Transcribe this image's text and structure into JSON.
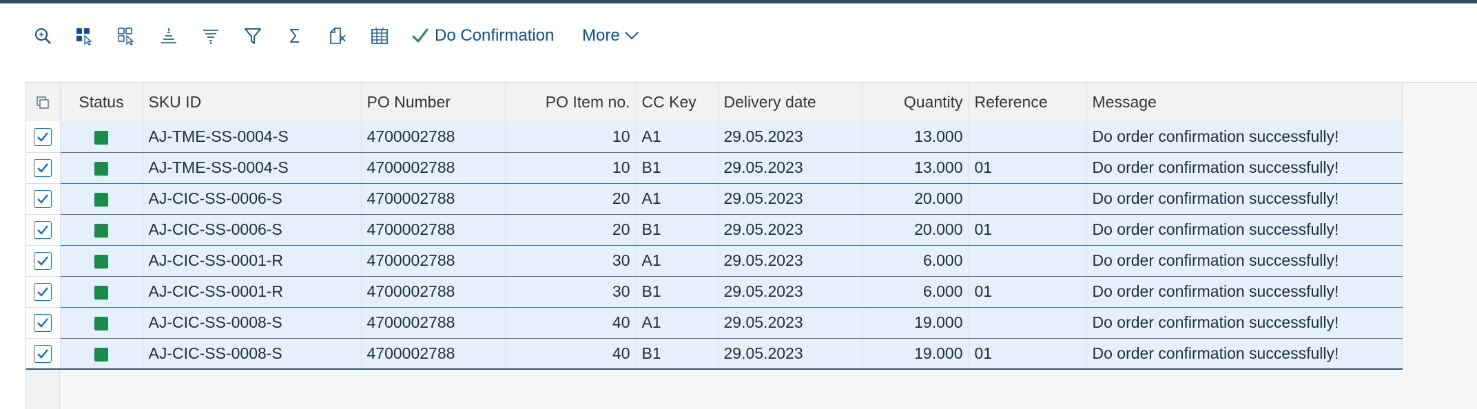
{
  "toolbar": {
    "icons": [
      "search-icon",
      "select-layout-icon",
      "choose-layout-icon",
      "sort-ascending-icon",
      "sort-descending-icon",
      "filter-icon",
      "sum-icon",
      "export-icon",
      "grid-settings-icon"
    ],
    "do_confirmation_label": "Do Confirmation",
    "more_label": "More"
  },
  "columns": {
    "status": "Status",
    "sku_id": "SKU ID",
    "po_number": "PO Number",
    "po_item_no": "PO Item no.",
    "cc_key": "CC Key",
    "delivery_date": "Delivery date",
    "quantity": "Quantity",
    "reference": "Reference",
    "message": "Message"
  },
  "rows": [
    {
      "sku_id": "AJ-TME-SS-0004-S",
      "po_number": "4700002788",
      "po_item_no": "10",
      "cc_key": "A1",
      "delivery_date": "29.05.2023",
      "quantity": "13.000",
      "reference": "",
      "message": "Do order confirmation successfully!"
    },
    {
      "sku_id": "AJ-TME-SS-0004-S",
      "po_number": "4700002788",
      "po_item_no": "10",
      "cc_key": "B1",
      "delivery_date": "29.05.2023",
      "quantity": "13.000",
      "reference": "01",
      "message": "Do order confirmation successfully!"
    },
    {
      "sku_id": "AJ-CIC-SS-0006-S",
      "po_number": "4700002788",
      "po_item_no": "20",
      "cc_key": "A1",
      "delivery_date": "29.05.2023",
      "quantity": "20.000",
      "reference": "",
      "message": "Do order confirmation successfully!"
    },
    {
      "sku_id": "AJ-CIC-SS-0006-S",
      "po_number": "4700002788",
      "po_item_no": "20",
      "cc_key": "B1",
      "delivery_date": "29.05.2023",
      "quantity": "20.000",
      "reference": "01",
      "message": "Do order confirmation successfully!"
    },
    {
      "sku_id": "AJ-CIC-SS-0001-R",
      "po_number": "4700002788",
      "po_item_no": "30",
      "cc_key": "A1",
      "delivery_date": "29.05.2023",
      "quantity": "6.000",
      "reference": "",
      "message": "Do order confirmation successfully!"
    },
    {
      "sku_id": "AJ-CIC-SS-0001-R",
      "po_number": "4700002788",
      "po_item_no": "30",
      "cc_key": "B1",
      "delivery_date": "29.05.2023",
      "quantity": "6.000",
      "reference": "01",
      "message": "Do order confirmation successfully!"
    },
    {
      "sku_id": "AJ-CIC-SS-0008-S",
      "po_number": "4700002788",
      "po_item_no": "40",
      "cc_key": "A1",
      "delivery_date": "29.05.2023",
      "quantity": "19.000",
      "reference": "",
      "message": "Do order confirmation successfully!"
    },
    {
      "sku_id": "AJ-CIC-SS-0008-S",
      "po_number": "4700002788",
      "po_item_no": "40",
      "cc_key": "B1",
      "delivery_date": "29.05.2023",
      "quantity": "19.000",
      "reference": "01",
      "message": "Do order confirmation successfully!"
    }
  ],
  "colors": {
    "accent": "#0a6ed1",
    "status_success": "#1a8b4b",
    "row_selected": "#e5f0fa",
    "confirm_check": "#1a8b4b"
  }
}
